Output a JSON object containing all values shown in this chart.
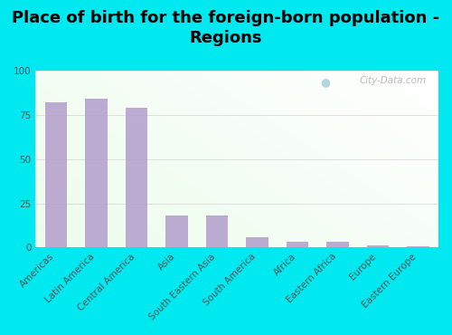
{
  "title": "Place of birth for the foreign-born population -\nRegions",
  "categories": [
    "Americas",
    "Latin America",
    "Central America",
    "Asia",
    "South Eastern Asia",
    "South America",
    "Africa",
    "Eastern Africa",
    "Europe",
    "Eastern Europe"
  ],
  "values": [
    82,
    84,
    79,
    18,
    18,
    6,
    3,
    3.2,
    1.0,
    0.8
  ],
  "bar_color": "#b39dcc",
  "ylim": [
    0,
    100
  ],
  "yticks": [
    0,
    25,
    50,
    75,
    100
  ],
  "background_outer": "#00e8f0",
  "title_fontsize": 13,
  "tick_fontsize": 7.5,
  "watermark": "City-Data.com"
}
